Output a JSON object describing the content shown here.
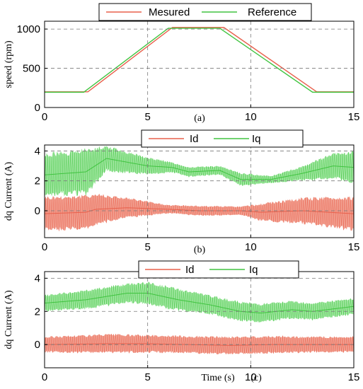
{
  "colors": {
    "red": "#e8604c",
    "red_fill": "#f2a394",
    "green": "#40c440",
    "green_fill": "#a5e8a5",
    "grid": "#7a7a7a"
  },
  "chart_data": [
    {
      "type": "line",
      "caption": "(a)",
      "ylabel": "speed (rpm)",
      "xlabel": "",
      "xlim": [
        0,
        15
      ],
      "ylim": [
        0,
        1100
      ],
      "xticks": [
        "0",
        "5",
        "10",
        "15"
      ],
      "yticks": [
        "0",
        "500",
        "1000"
      ],
      "grid": true,
      "legend_position": "top-center",
      "series": [
        {
          "name": "Mesured",
          "color": "#e8604c",
          "x": [
            0,
            2.1,
            6.2,
            8.7,
            13.2,
            15
          ],
          "y": [
            200,
            200,
            1020,
            1020,
            200,
            200
          ]
        },
        {
          "name": "Reference",
          "color": "#40c440",
          "x": [
            0,
            1.9,
            6.0,
            8.5,
            13.0,
            15
          ],
          "y": [
            195,
            195,
            1010,
            1010,
            195,
            195
          ]
        }
      ]
    },
    {
      "type": "area",
      "caption": "(b)",
      "ylabel": "dq Current (A)",
      "xlabel": "",
      "xlim": [
        0,
        15
      ],
      "ylim": [
        -1.8,
        4.4
      ],
      "xticks": [
        "0",
        "5",
        "10",
        "15"
      ],
      "yticks": [
        "0",
        "2",
        "4"
      ],
      "grid": true,
      "legend_position": "top-center",
      "series": [
        {
          "name": "Id",
          "color": "#e8604c",
          "x": [
            0,
            2,
            2.5,
            4,
            6,
            7.5,
            9.5,
            10.5,
            12.5,
            15
          ],
          "y_mid": [
            -0.2,
            -0.1,
            0.1,
            0.2,
            0.1,
            0.0,
            0.0,
            -0.1,
            0.0,
            -0.2
          ],
          "y_amp": [
            1.2,
            1.2,
            1.1,
            0.7,
            0.3,
            0.35,
            0.3,
            0.6,
            0.9,
            1.2
          ]
        },
        {
          "name": "Iq",
          "color": "#40c440",
          "x": [
            0,
            2,
            3,
            5,
            6.2,
            7,
            8.5,
            9.5,
            11,
            12.5,
            14,
            15
          ],
          "y_mid": [
            2.4,
            2.6,
            3.5,
            3.0,
            2.9,
            2.6,
            2.7,
            2.1,
            2.1,
            2.5,
            3.0,
            2.9
          ],
          "y_amp": [
            1.5,
            1.6,
            0.9,
            0.6,
            0.35,
            0.35,
            0.3,
            0.45,
            0.25,
            0.5,
            0.9,
            1.1
          ]
        }
      ]
    },
    {
      "type": "area",
      "caption": "(c)",
      "ylabel": "dq Current (A)",
      "xlabel": "Time (s)",
      "xlim": [
        0,
        15
      ],
      "ylim": [
        -1.4,
        4.4
      ],
      "xticks": [
        "0",
        "5",
        "10",
        "15"
      ],
      "yticks": [
        "0",
        "2",
        "4"
      ],
      "grid": true,
      "legend_position": "top-center",
      "series": [
        {
          "name": "Id",
          "color": "#e8604c",
          "x": [
            0,
            3,
            5,
            7,
            9,
            11,
            13,
            15
          ],
          "y_mid": [
            0.0,
            0.05,
            0.05,
            0.0,
            -0.05,
            0.0,
            0.0,
            0.0
          ],
          "y_amp": [
            0.5,
            0.6,
            0.55,
            0.55,
            0.55,
            0.55,
            0.5,
            0.5
          ]
        },
        {
          "name": "Iq",
          "color": "#40c440",
          "x": [
            0,
            2,
            4,
            5,
            6.5,
            8,
            9.5,
            10.5,
            12,
            13,
            15
          ],
          "y_mid": [
            2.5,
            2.7,
            3.1,
            3.1,
            2.7,
            2.4,
            2.0,
            1.9,
            2.1,
            2.0,
            2.3
          ],
          "y_amp": [
            0.5,
            0.6,
            0.6,
            0.7,
            0.7,
            0.6,
            0.6,
            0.6,
            0.55,
            0.55,
            0.5
          ]
        }
      ]
    }
  ]
}
